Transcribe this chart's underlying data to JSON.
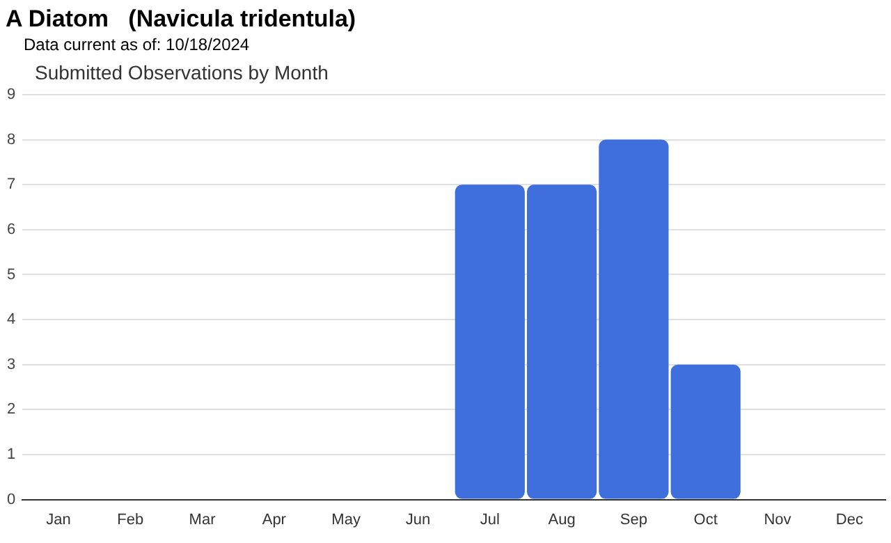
{
  "chart_data": {
    "type": "bar",
    "title": "A Diatom   (Navicula tridentula)",
    "subtitle": "Data current as of: 10/18/2024",
    "annotations": [
      "Submitted Observations by Month"
    ],
    "categories": [
      "Jan",
      "Feb",
      "Mar",
      "Apr",
      "May",
      "Jun",
      "Jul",
      "Aug",
      "Sep",
      "Oct",
      "Nov",
      "Dec"
    ],
    "values": [
      0,
      0,
      0,
      0,
      0,
      0,
      7,
      7,
      8,
      3,
      0,
      0
    ],
    "color": "#3f6fdc",
    "ylim": [
      0,
      9
    ],
    "yticks": [
      0,
      1,
      2,
      3,
      4,
      5,
      6,
      7,
      8,
      9
    ],
    "grid": "y",
    "legend": false
  }
}
